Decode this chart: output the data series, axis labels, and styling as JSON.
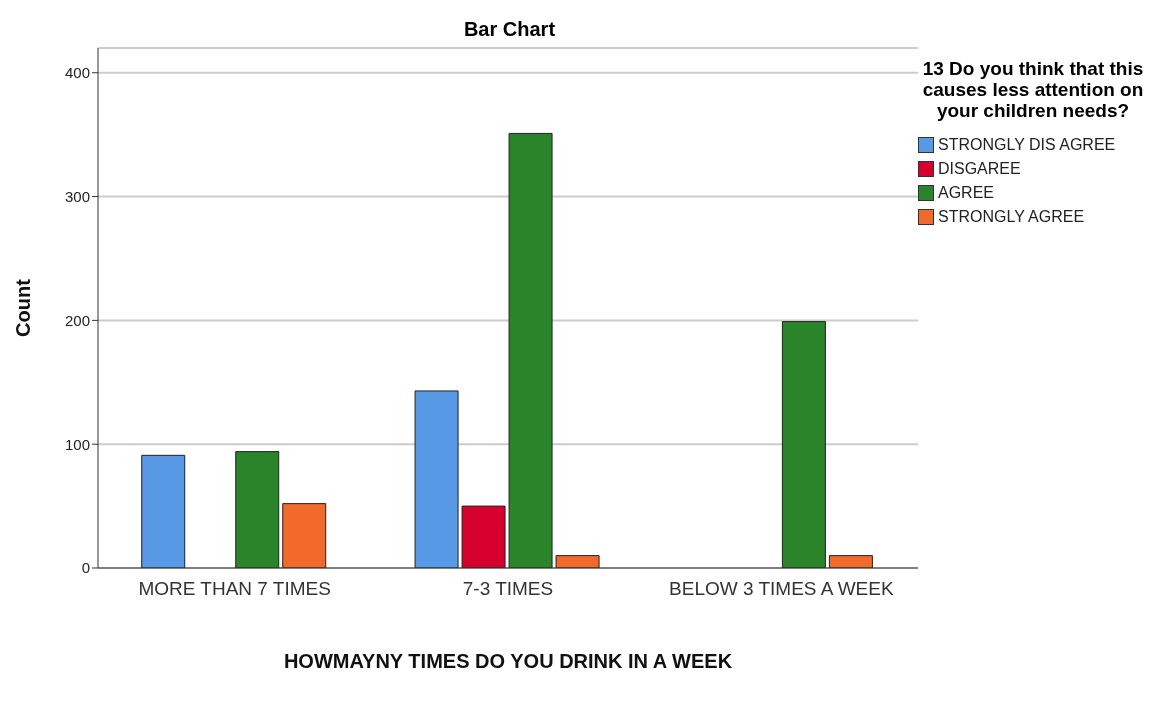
{
  "chart_data": {
    "type": "bar",
    "title": "Bar Chart",
    "xlabel": "HOWMAYNY TIMES DO YOU DRINK IN A WEEK",
    "ylabel": "Count",
    "legend_title": "13 Do you think that this causes less attention on your children needs?",
    "categories": [
      "MORE THAN 7 TIMES",
      "7-3 TIMES",
      "BELOW 3 TIMES A WEEK"
    ],
    "series": [
      {
        "name": "STRONGLY DIS AGREE",
        "color": "#5799e4",
        "values": [
          91,
          143,
          null
        ]
      },
      {
        "name": "DISGAREE",
        "color": "#d6002f",
        "values": [
          null,
          50,
          null
        ]
      },
      {
        "name": "AGREE",
        "color": "#2a8429",
        "values": [
          94,
          351,
          199
        ]
      },
      {
        "name": "STRONGLY AGREE",
        "color": "#f1692b",
        "values": [
          52,
          10,
          10
        ]
      }
    ],
    "ylim": [
      0,
      420
    ],
    "yticks": [
      0,
      100,
      200,
      300,
      400
    ],
    "grid": "y",
    "legend": "top right"
  }
}
